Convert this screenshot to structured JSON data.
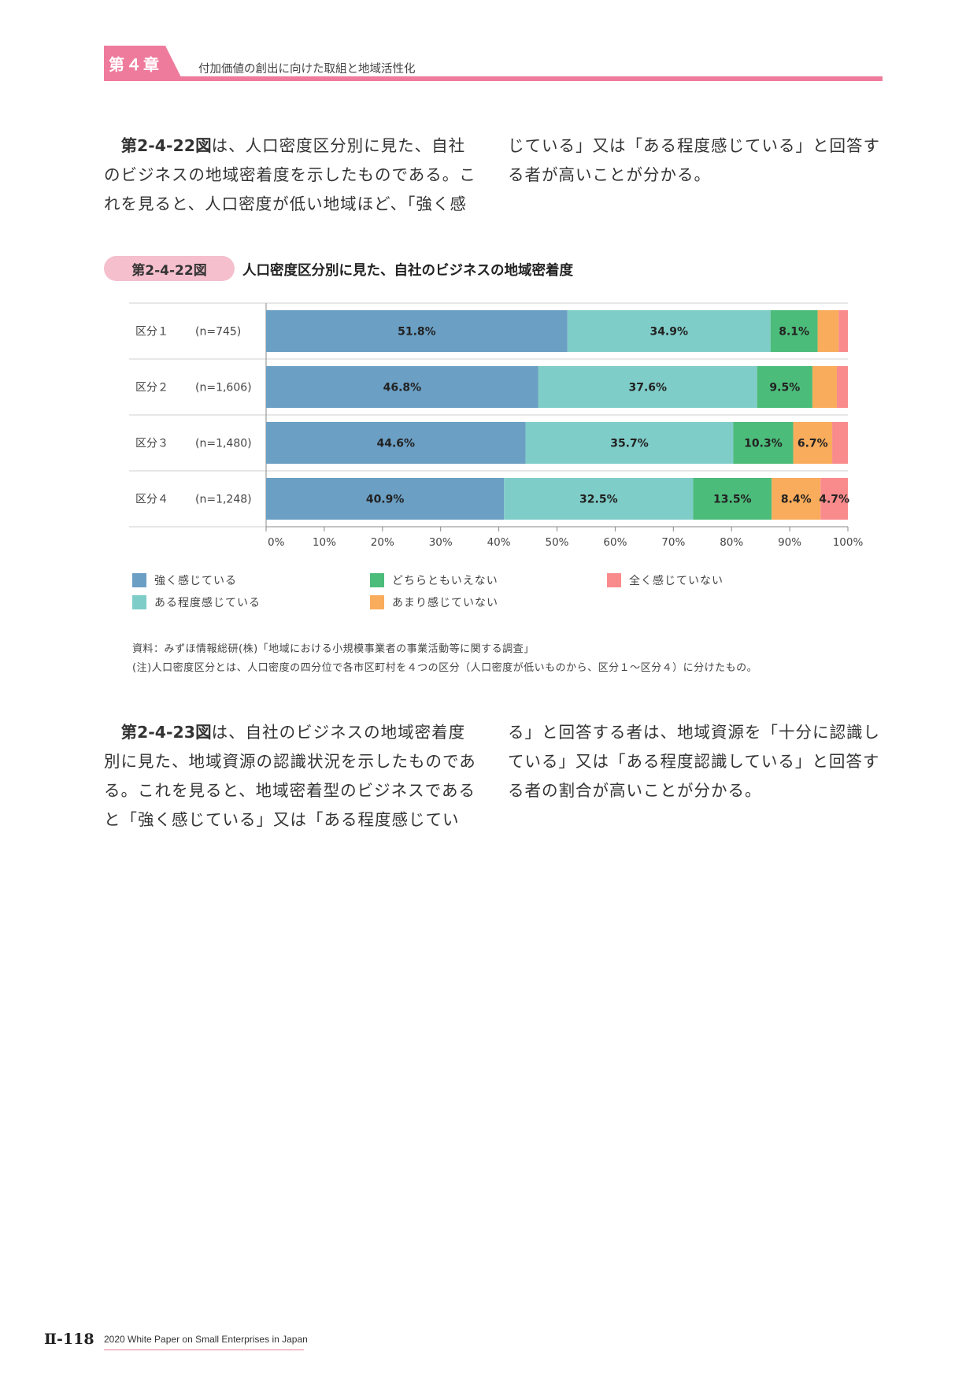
{
  "header": {
    "chapter_label": "第４章",
    "chapter_title": "付加価値の創出に向けた取組と地域活性化"
  },
  "intro": {
    "left_ref": "第2-4-22図",
    "left_text": "は、人口密度区分別に見た、自社\nのビジネスの地域密着度を示したものである。こ\nれを見ると、人口密度が低い地域ほど、「強く感",
    "right_text": "じている」又は「ある程度感じている」と回答す\nる者が高いことが分かる。"
  },
  "figure": {
    "badge": "第2-4-22図",
    "title": "人口密度区分別に見た、自社のビジネスの地域密着度"
  },
  "chart_data": {
    "type": "bar",
    "orientation": "horizontal-stacked-100",
    "categories": [
      {
        "name": "区分１",
        "n": "(n=745)"
      },
      {
        "name": "区分２",
        "n": "(n=1,606)"
      },
      {
        "name": "区分３",
        "n": "(n=1,480)"
      },
      {
        "name": "区分４",
        "n": "(n=1,248)"
      }
    ],
    "series": [
      {
        "name": "強く感じている",
        "color": "#6b9fc4",
        "values": [
          51.8,
          46.8,
          44.6,
          40.9
        ],
        "labels": [
          "51.8%",
          "46.8%",
          "44.6%",
          "40.9%"
        ]
      },
      {
        "name": "ある程度感じている",
        "color": "#7fcdc8",
        "values": [
          34.9,
          37.6,
          35.7,
          32.5
        ],
        "labels": [
          "34.9%",
          "37.6%",
          "35.7%",
          "32.5%"
        ]
      },
      {
        "name": "どちらともいえない",
        "color": "#4cbc7a",
        "values": [
          8.1,
          9.5,
          10.3,
          13.5
        ],
        "labels": [
          "8.1%",
          "9.5%",
          "10.3%",
          "13.5%"
        ]
      },
      {
        "name": "あまり感じていない",
        "color": "#f9ac5b",
        "values": [
          3.6,
          4.2,
          6.7,
          8.4
        ],
        "labels": [
          "",
          "",
          "6.7%",
          "8.4%"
        ]
      },
      {
        "name": "全く感じていない",
        "color": "#f98b8c",
        "values": [
          1.6,
          1.9,
          2.7,
          4.7
        ],
        "labels": [
          "",
          "",
          "",
          "4.7%"
        ]
      }
    ],
    "xticks": [
      "0%",
      "10%",
      "20%",
      "30%",
      "40%",
      "50%",
      "60%",
      "70%",
      "80%",
      "90%",
      "100%"
    ],
    "xlim": [
      0,
      100
    ]
  },
  "notes": {
    "source": "資料：みずほ情報総研(株)「地域における小規模事業者の事業活動等に関する調査」",
    "note": "(注)人口密度区分とは、人口密度の四分位で各市区町村を４つの区分（人口密度が低いものから、区分１～区分４）に分けたもの。"
  },
  "outro": {
    "left_ref": "第2-4-23図",
    "left_text": "は、自社のビジネスの地域密着度\n別に見た、地域資源の認識状況を示したものであ\nる。これを見ると、地域密着型のビジネスである\nと「強く感じている」又は「ある程度感じてい",
    "right_text": "る」と回答する者は、地域資源を「十分に認識し\nている」又は「ある程度認識している」と回答す\nる者の割合が高いことが分かる。"
  },
  "footer": {
    "page_number": "Ⅱ-118",
    "publication": "2020 White Paper on Small Enterprises in Japan"
  }
}
